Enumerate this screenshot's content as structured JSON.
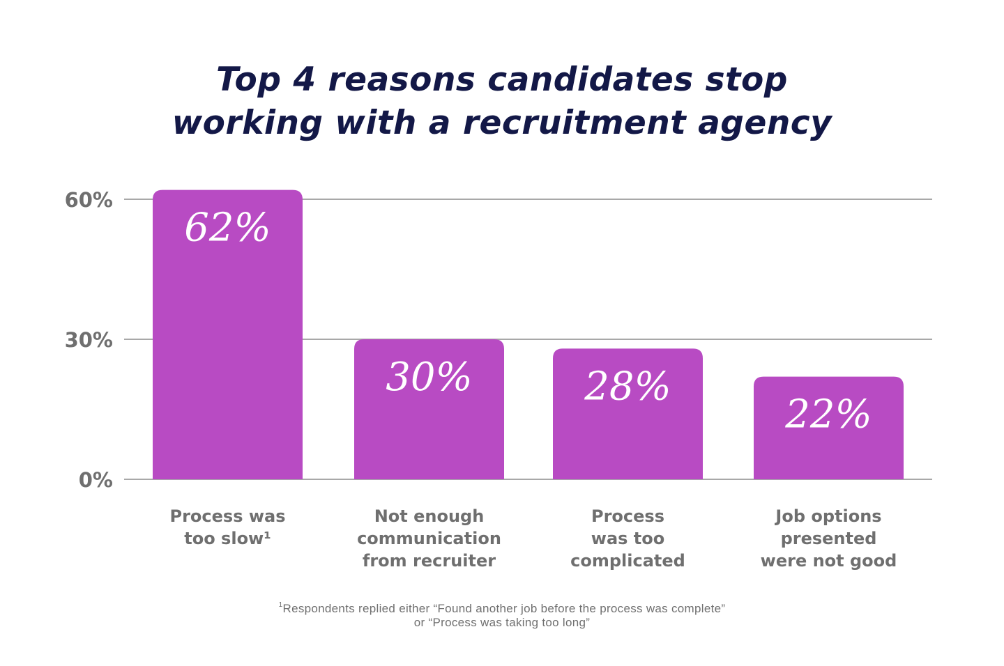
{
  "chart_data": {
    "type": "bar",
    "title_lines": [
      "Top 4 reasons candidates stop",
      "working with a recruitment agency"
    ],
    "categories": [
      [
        "Process was",
        "too slow¹"
      ],
      [
        "Not enough",
        "communication",
        "from recruiter"
      ],
      [
        "Process",
        "was too",
        "complicated"
      ],
      [
        "Job options",
        "presented",
        "were not good"
      ]
    ],
    "values": [
      62,
      30,
      28,
      22
    ],
    "value_labels": [
      "62%",
      "30%",
      "28%",
      "22%"
    ],
    "y_ticks": [
      {
        "value": 0,
        "label": "0%"
      },
      {
        "value": 30,
        "label": "30%"
      },
      {
        "value": 60,
        "label": "60%"
      }
    ],
    "ylim": [
      0,
      60
    ],
    "grid": true,
    "colors": {
      "bar": "#b84bc3",
      "title": "#131847",
      "axis_text": "#6f6f6f",
      "grid": "#a8a8a8",
      "value_text": "#ffffff"
    }
  },
  "footnote": {
    "marker": "1",
    "line1": "Respondents replied either “Found another job before the process was complete”",
    "line2": "or “Process was taking too long”"
  }
}
